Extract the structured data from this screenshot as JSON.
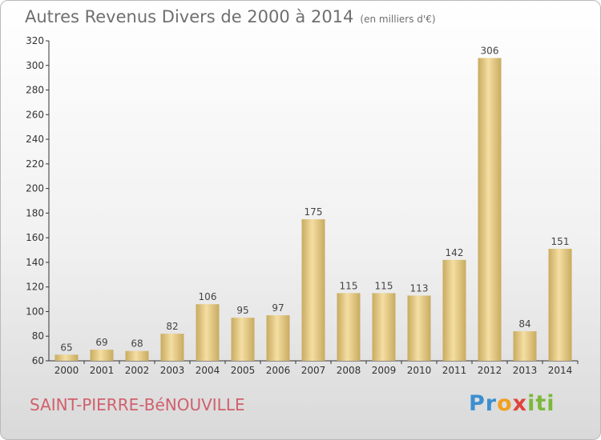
{
  "title": "Autres Revenus Divers de 2000 à 2014",
  "unit": "(en milliers d'€)",
  "place_name": "SAINT-PIERRE-BéNOUVILLE",
  "logo_text": "Proxiti",
  "colors": {
    "bar_light": "#f5dea2",
    "bar_dark": "#c8ab60",
    "title": "#6f6f6f",
    "place": "#d0606d"
  },
  "chart_data": {
    "type": "bar",
    "categories": [
      "2000",
      "2001",
      "2002",
      "2003",
      "2004",
      "2005",
      "2006",
      "2007",
      "2008",
      "2009",
      "2010",
      "2011",
      "2012",
      "2013",
      "2014"
    ],
    "values": [
      65,
      69,
      68,
      82,
      106,
      95,
      97,
      175,
      115,
      115,
      113,
      142,
      306,
      84,
      151
    ],
    "title": "Autres Revenus Divers de 2000 à 2014",
    "subtitle": "(en milliers d'€)",
    "xlabel": "",
    "ylabel": "",
    "ylim": [
      60,
      320
    ],
    "yticks": [
      60,
      80,
      100,
      120,
      140,
      160,
      180,
      200,
      220,
      240,
      260,
      280,
      300,
      320
    ],
    "grid": false,
    "legend": "none"
  }
}
